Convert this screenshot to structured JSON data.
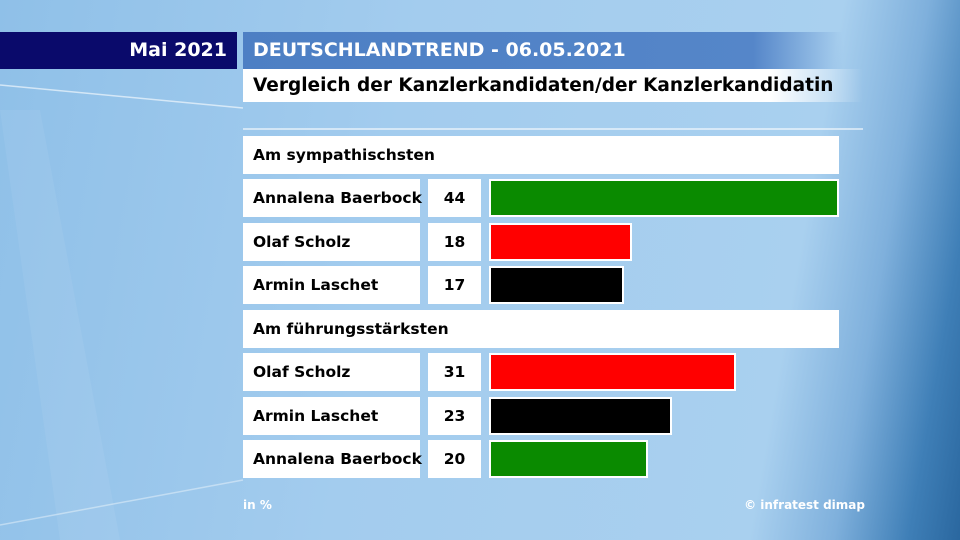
{
  "header": {
    "month": "Mai 2021",
    "title": "DEUTSCHLANDTREND - 06.05.2021",
    "subtitle": "Vergleich der Kanzlerkandidaten/der Kanzlerkandidatin"
  },
  "footer": {
    "unit": "in %",
    "source": "© infratest dimap"
  },
  "chart_data": [
    {
      "type": "bar",
      "orientation": "horizontal",
      "title": "Am sympathischsten",
      "categories": [
        "Annalena Baerbock",
        "Olaf Scholz",
        "Armin Laschet"
      ],
      "values": [
        44,
        18,
        17
      ],
      "colors": [
        "#0a8a00",
        "#ff0000",
        "#000000"
      ],
      "xlim": [
        0,
        44
      ],
      "unit": "in %"
    },
    {
      "type": "bar",
      "orientation": "horizontal",
      "title": "Am führungsstärksten",
      "categories": [
        "Olaf Scholz",
        "Armin Laschet",
        "Annalena Baerbock"
      ],
      "values": [
        31,
        23,
        20
      ],
      "colors": [
        "#ff0000",
        "#000000",
        "#0a8a00"
      ],
      "xlim": [
        0,
        44
      ],
      "unit": "in %"
    }
  ]
}
